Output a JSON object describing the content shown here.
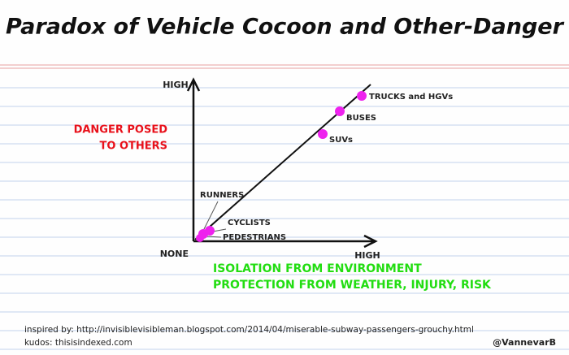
{
  "title": "Paradox of Vehicle Cocoon and Other-Danger",
  "y_axis": {
    "high": "HIGH",
    "title_lines": [
      "DANGER POSED",
      "TO OTHERS"
    ]
  },
  "x_axis": {
    "high": "HIGH",
    "title_lines": [
      "ISOLATION FROM ENVIRONMENT",
      "PROTECTION FROM WEATHER, INJURY, RISK"
    ]
  },
  "origin": "NONE",
  "nodes": [
    {
      "label": "TRUCKS and HGVs"
    },
    {
      "label": "BUSES"
    },
    {
      "label": "SUVs"
    },
    {
      "label": "RUNNERS"
    },
    {
      "label": "CYCLISTS"
    },
    {
      "label": "PEDESTRIANS"
    }
  ],
  "footer": {
    "inspired": "inspired by: http://invisiblevisibleman.blogspot.com/2014/04/miserable-subway-passengers-grouchy.html",
    "kudos": "kudos: thisisindexed.com",
    "handle": "@VannevarB"
  }
}
